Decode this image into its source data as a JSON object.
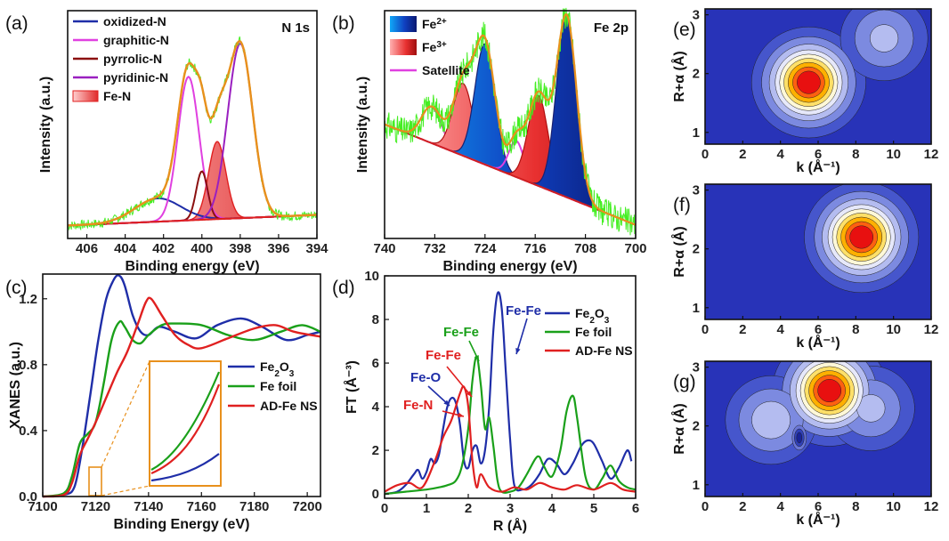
{
  "colors": {
    "blue": "#1f2ea8",
    "magenta": "#e040e0",
    "darkred": "#8b1010",
    "purple": "#9a20c0",
    "red": "#e02020",
    "green": "#1aa01a",
    "lime": "#44ee22",
    "orange": "#e8901c",
    "cyan": "#10a0f0",
    "navy": "#1a2070",
    "pink": "#f06070"
  },
  "chart_data": [
    {
      "id": "a",
      "panel_label": "(a)",
      "type": "line",
      "corner_label": "N 1s",
      "xlabel": "Binding energy (eV)",
      "ylabel": "Intensity (a.u.)",
      "xlim": [
        407,
        394
      ],
      "xticks": [
        406,
        404,
        402,
        400,
        398,
        396,
        394
      ],
      "legend": [
        "oxidized-N",
        "graphitic-N",
        "pyrrolic-N",
        "pyridinic-N",
        "Fe-N"
      ],
      "legend_position": "top-left",
      "peaks": [
        {
          "name": "oxidized-N",
          "center": 402.3,
          "height": 0.12,
          "width": 1.2
        },
        {
          "name": "graphitic-N",
          "center": 400.7,
          "height": 0.74,
          "width": 0.55
        },
        {
          "name": "pyrrolic-N",
          "center": 400.0,
          "height": 0.25,
          "width": 0.3
        },
        {
          "name": "pyridinic-N",
          "center": 398.0,
          "height": 0.9,
          "width": 0.65
        },
        {
          "name": "Fe-N",
          "center": 399.2,
          "height": 0.4,
          "width": 0.45
        }
      ]
    },
    {
      "id": "b",
      "panel_label": "(b)",
      "type": "line",
      "corner_label": "Fe 2p",
      "xlabel": "Binding energy (eV)",
      "ylabel": "Intensity (a.u.)",
      "xlim": [
        740,
        700
      ],
      "xticks": [
        740,
        732,
        724,
        716,
        708,
        700
      ],
      "legend": [
        "Fe",
        "Fe",
        "Satellite"
      ],
      "legend_superscripts": [
        "2+",
        "3+",
        ""
      ],
      "legend_position": "top-left",
      "peaks": [
        {
          "name": "Satellite",
          "center": 732.5,
          "height": 0.18,
          "width": 1.6
        },
        {
          "name": "Fe3+",
          "center": 727.5,
          "height": 0.36,
          "width": 1.6
        },
        {
          "name": "Fe2+",
          "center": 724.0,
          "height": 0.6,
          "width": 1.6
        },
        {
          "name": "Satellite",
          "center": 719.0,
          "height": 0.18,
          "width": 1.2
        },
        {
          "name": "Fe3+",
          "center": 715.5,
          "height": 0.45,
          "width": 1.6
        },
        {
          "name": "Fe2+",
          "center": 711.0,
          "height": 0.9,
          "width": 1.6
        }
      ]
    },
    {
      "id": "c",
      "panel_label": "(c)",
      "type": "line",
      "xlabel": "Binding Energy (eV)",
      "ylabel": "XANES (a.u.)",
      "xlim": [
        7100,
        7205
      ],
      "ylim": [
        0,
        1.35
      ],
      "xticks": [
        7100,
        7120,
        7140,
        7160,
        7180,
        7200
      ],
      "yticks": [
        0.0,
        0.4,
        0.8,
        1.2
      ],
      "ytick_labels": [
        "0.0",
        "0.4",
        "0.8",
        "1.2"
      ],
      "legend_position": "center-right",
      "series": [
        {
          "name": "Fe",
          "sub": "2",
          "name2": "O",
          "sub2": "3",
          "color": "blue",
          "x": [
            7100,
            7108,
            7112,
            7115,
            7118,
            7121,
            7124,
            7127,
            7129,
            7131,
            7134,
            7137,
            7140,
            7144,
            7150,
            7158,
            7166,
            7175,
            7183,
            7192,
            7200,
            7205
          ],
          "y": [
            0.0,
            0.01,
            0.06,
            0.3,
            0.62,
            0.95,
            1.2,
            1.32,
            1.34,
            1.28,
            1.1,
            1.0,
            0.98,
            1.03,
            1.0,
            0.96,
            1.04,
            1.08,
            1.03,
            0.95,
            0.98,
            1.0
          ]
        },
        {
          "name": "Fe foil",
          "color": "green",
          "x": [
            7100,
            7108,
            7111,
            7114,
            7117,
            7120,
            7123,
            7126,
            7129,
            7131,
            7134,
            7137,
            7140,
            7145,
            7150,
            7160,
            7170,
            7180,
            7190,
            7198,
            7205
          ],
          "y": [
            0.0,
            0.02,
            0.12,
            0.32,
            0.38,
            0.45,
            0.68,
            0.95,
            1.06,
            1.03,
            0.95,
            0.93,
            0.98,
            1.04,
            1.05,
            1.04,
            0.98,
            0.95,
            1.0,
            1.04,
            1.0
          ]
        },
        {
          "name": "AD-Fe NS",
          "color": "red",
          "x": [
            7100,
            7108,
            7111,
            7114,
            7117,
            7120,
            7124,
            7128,
            7132,
            7136,
            7139,
            7141,
            7145,
            7150,
            7155,
            7160,
            7170,
            7180,
            7188,
            7195,
            7205
          ],
          "y": [
            0.0,
            0.01,
            0.08,
            0.25,
            0.35,
            0.45,
            0.6,
            0.75,
            0.88,
            1.05,
            1.18,
            1.2,
            1.1,
            0.98,
            0.92,
            0.9,
            0.96,
            1.02,
            1.04,
            1.0,
            0.97
          ]
        }
      ]
    },
    {
      "id": "d",
      "panel_label": "(d)",
      "type": "line",
      "xlabel": "R (Å)",
      "ylabel": "FT (Å⁻³)",
      "xlim": [
        0,
        6
      ],
      "ylim": [
        -0.2,
        10
      ],
      "xticks": [
        0,
        1,
        2,
        3,
        4,
        5,
        6
      ],
      "yticks": [
        0,
        2,
        4,
        6,
        8,
        10
      ],
      "legend_position": "top-right",
      "annotations": [
        {
          "text": "Fe-Fe",
          "color": "blue"
        },
        {
          "text": "Fe-Fe",
          "color": "green"
        },
        {
          "text": "Fe-Fe",
          "color": "red"
        },
        {
          "text": "Fe-O",
          "color": "blue"
        },
        {
          "text": "Fe-N",
          "color": "red"
        }
      ],
      "series": [
        {
          "name": "Fe",
          "sub": "2",
          "name2": "O",
          "sub2": "3",
          "color": "blue",
          "x": [
            0,
            0.3,
            0.5,
            0.7,
            0.8,
            0.9,
            1.0,
            1.1,
            1.2,
            1.3,
            1.4,
            1.5,
            1.6,
            1.7,
            1.8,
            1.9,
            2.0,
            2.1,
            2.2,
            2.3,
            2.4,
            2.5,
            2.6,
            2.7,
            2.8,
            2.9,
            3.0,
            3.1,
            3.3,
            3.5,
            3.7,
            3.9,
            4.1,
            4.3,
            4.5,
            4.7,
            4.85,
            5.0,
            5.2,
            5.4,
            5.6,
            5.8,
            5.9
          ],
          "y": [
            0,
            0.1,
            0.4,
            0.9,
            1.1,
            0.7,
            1.0,
            1.6,
            1.4,
            1.8,
            3.0,
            4.0,
            4.4,
            4.2,
            3.2,
            1.5,
            1.2,
            2.0,
            2.2,
            1.4,
            2.0,
            4.0,
            7.5,
            9.2,
            8.5,
            5.5,
            2.5,
            0.4,
            0.2,
            0.4,
            0.9,
            1.6,
            1.4,
            0.9,
            1.4,
            2.2,
            2.45,
            2.3,
            1.5,
            0.7,
            1.2,
            2.0,
            1.5
          ]
        },
        {
          "name": "Fe foil",
          "color": "green",
          "x": [
            0,
            0.5,
            1.0,
            1.3,
            1.5,
            1.7,
            1.85,
            2.0,
            2.1,
            2.2,
            2.3,
            2.4,
            2.5,
            2.6,
            2.7,
            2.8,
            3.0,
            3.2,
            3.4,
            3.6,
            3.7,
            3.8,
            4.0,
            4.2,
            4.35,
            4.5,
            4.6,
            4.8,
            5.0,
            5.2,
            5.4,
            5.6,
            5.8,
            6.0
          ],
          "y": [
            0,
            0.1,
            0.2,
            0.3,
            0.4,
            0.6,
            1.3,
            3.0,
            5.2,
            6.3,
            5.0,
            3.0,
            3.5,
            2.2,
            0.6,
            0.1,
            0.1,
            0.3,
            0.9,
            1.6,
            1.7,
            1.3,
            0.8,
            2.0,
            3.8,
            4.5,
            3.5,
            0.8,
            0.2,
            0.7,
            1.3,
            0.6,
            0.3,
            0.2
          ]
        },
        {
          "name": "AD-Fe NS",
          "color": "red",
          "x": [
            0,
            0.3,
            0.6,
            0.9,
            1.2,
            1.4,
            1.6,
            1.8,
            1.9,
            2.0,
            2.1,
            2.2,
            2.3,
            2.5,
            2.8,
            3.1,
            3.4,
            3.7,
            4.0,
            4.3,
            4.6,
            5.0,
            5.4,
            5.7,
            6.0
          ],
          "y": [
            0.1,
            0.4,
            0.5,
            0.3,
            1.5,
            2.6,
            3.4,
            4.6,
            4.9,
            4.0,
            1.5,
            0.3,
            0.9,
            0.3,
            0.1,
            0.3,
            0.2,
            0.5,
            0.3,
            0.2,
            0.4,
            0.2,
            0.5,
            0.2,
            0.1
          ]
        }
      ]
    },
    {
      "id": "e",
      "panel_label": "(e)",
      "type": "heatmap",
      "xlabel": "k (Å⁻¹)",
      "ylabel": "R+α (Å)",
      "xlim": [
        0,
        12
      ],
      "ylim": [
        0.8,
        3.1
      ],
      "xticks": [
        0,
        2,
        4,
        6,
        8,
        10,
        12
      ],
      "yticks": [
        1,
        2,
        3
      ],
      "peaks": [
        {
          "k": 5.5,
          "r": 1.85,
          "amp": 1.0
        },
        {
          "k": 9.5,
          "r": 2.6,
          "amp": 0.35
        }
      ]
    },
    {
      "id": "f",
      "panel_label": "(f)",
      "type": "heatmap",
      "xlabel": "k (Å⁻¹)",
      "ylabel": "R+α (Å)",
      "xlim": [
        0,
        12
      ],
      "ylim": [
        0.8,
        3.1
      ],
      "xticks": [
        0,
        2,
        4,
        6,
        8,
        10,
        12
      ],
      "yticks": [
        1,
        2,
        3
      ],
      "peaks": [
        {
          "k": 8.3,
          "r": 2.2,
          "amp": 1.0
        }
      ]
    },
    {
      "id": "g",
      "panel_label": "(g)",
      "type": "heatmap",
      "xlabel": "k (Å⁻¹)",
      "ylabel": "R+α (Å)",
      "xlim": [
        0,
        12
      ],
      "ylim": [
        0.8,
        3.1
      ],
      "xticks": [
        0,
        2,
        4,
        6,
        8,
        10,
        12
      ],
      "yticks": [
        1,
        2,
        3
      ],
      "peaks": [
        {
          "k": 6.6,
          "r": 2.6,
          "amp": 1.0
        },
        {
          "k": 3.5,
          "r": 2.1,
          "amp": 0.4
        },
        {
          "k": 8.8,
          "r": 2.3,
          "amp": 0.35
        },
        {
          "k": 5.0,
          "r": 1.8,
          "amp": -0.7
        }
      ]
    }
  ]
}
